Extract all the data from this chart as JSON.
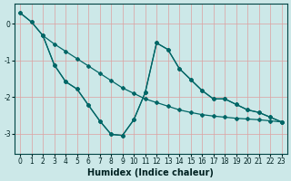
{
  "xlabel": "Humidex (Indice chaleur)",
  "background_color": "#cce8e8",
  "grid_color": "#dda0a0",
  "line_color": "#006666",
  "xlim": [
    -0.5,
    23.5
  ],
  "ylim": [
    -3.55,
    0.55
  ],
  "yticks": [
    0,
    -1,
    -2,
    -3
  ],
  "xticks": [
    0,
    1,
    2,
    3,
    4,
    5,
    6,
    7,
    8,
    9,
    10,
    11,
    12,
    13,
    14,
    15,
    16,
    17,
    18,
    19,
    20,
    21,
    22,
    23
  ],
  "line1_x": [
    0,
    1,
    2,
    3,
    4,
    5,
    6,
    7,
    8,
    9,
    10,
    11,
    12,
    13,
    14,
    15,
    16,
    17,
    18,
    19,
    20,
    21,
    22,
    23
  ],
  "line1_y": [
    0.3,
    0.05,
    -0.32,
    -0.55,
    -0.75,
    -0.95,
    -1.15,
    -1.35,
    -1.55,
    -1.75,
    -1.9,
    -2.05,
    -2.15,
    -2.25,
    -2.35,
    -2.42,
    -2.48,
    -2.52,
    -2.55,
    -2.58,
    -2.6,
    -2.62,
    -2.65,
    -2.68
  ],
  "line2_x": [
    0,
    1,
    2,
    3,
    4,
    5,
    6,
    7,
    8,
    9,
    10,
    11,
    12,
    13,
    14,
    15,
    16,
    17,
    18,
    19,
    20,
    21,
    22,
    23
  ],
  "line2_y": [
    0.3,
    0.05,
    -0.32,
    -1.12,
    -1.58,
    -1.78,
    -2.22,
    -2.65,
    -3.02,
    -3.05,
    -2.62,
    -1.88,
    -0.52,
    -0.7,
    -1.22,
    -1.52,
    -1.82,
    -2.05,
    -2.05,
    -2.2,
    -2.35,
    -2.42,
    -2.55,
    -2.68
  ],
  "line3_x": [
    2,
    3,
    4,
    5,
    6,
    7,
    8,
    9,
    10,
    11,
    12,
    13,
    14,
    15,
    16,
    17,
    18,
    19,
    20,
    21,
    22,
    23
  ],
  "line3_y": [
    -0.32,
    -1.12,
    -1.58,
    -1.78,
    -2.22,
    -2.65,
    -3.02,
    -3.05,
    -2.62,
    -1.88,
    -0.52,
    -0.7,
    -1.22,
    -1.52,
    -1.82,
    -2.05,
    -2.05,
    -2.2,
    -2.35,
    -2.42,
    -2.55,
    -2.68
  ],
  "line_width": 0.9,
  "marker": "D",
  "marker_size": 2.0,
  "xlabel_fontsize": 7,
  "tick_fontsize": 5.5
}
